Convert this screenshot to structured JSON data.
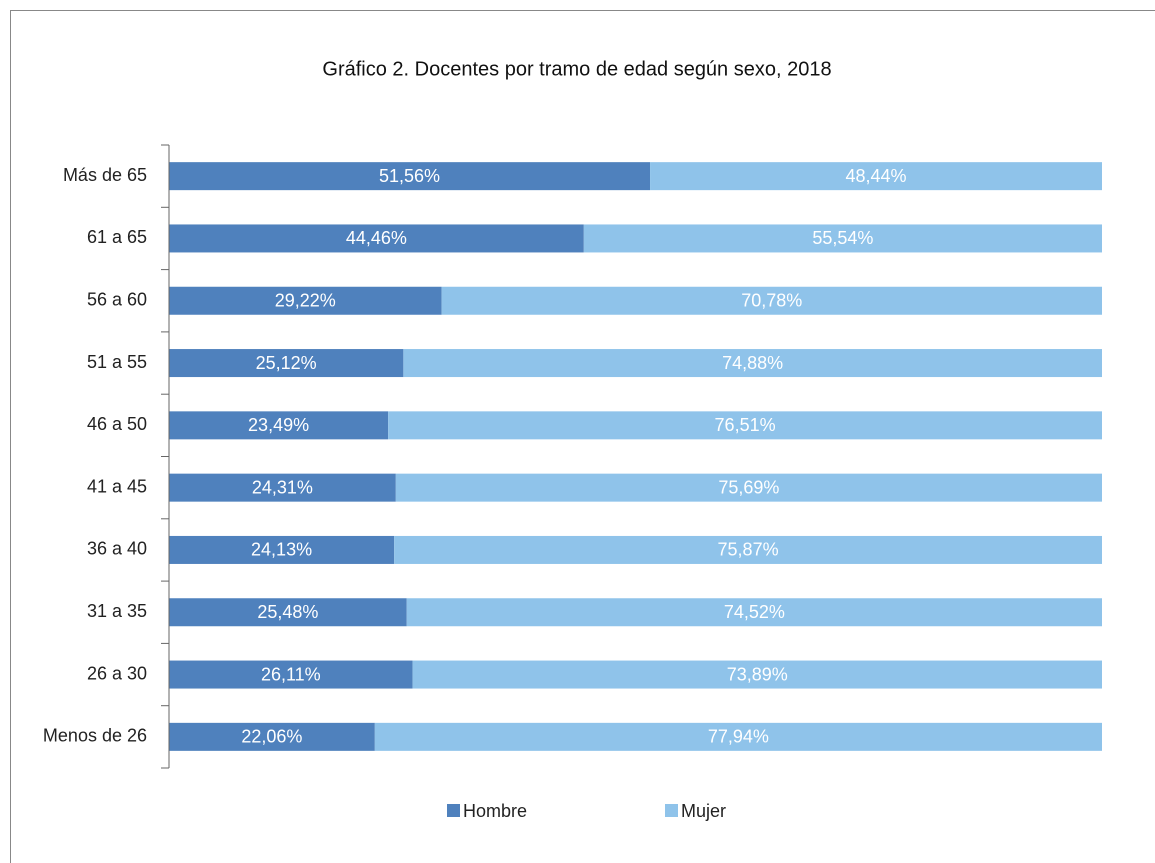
{
  "chart_data": {
    "type": "stacked-barh",
    "title": "Gráfico 2. Docentes por tramo de edad según sexo, 2018",
    "categories": [
      "Más de 65",
      "61 a 65",
      "56 a 60",
      "51 a 55",
      "46 a 50",
      "41 a 45",
      "36 a 40",
      "31 a 35",
      "26 a 30",
      "Menos de 26"
    ],
    "xlim": [
      0,
      100
    ],
    "series": [
      {
        "name": "Hombre",
        "color": "#4f81bd",
        "values": [
          51.56,
          44.46,
          29.22,
          25.12,
          23.49,
          24.31,
          24.13,
          25.48,
          26.11,
          22.06
        ],
        "value_labels": [
          "51,56%",
          "44,46%",
          "29,22%",
          "25,12%",
          "23,49%",
          "24,31%",
          "24,13%",
          "25,48%",
          "26,11%",
          "22,06%"
        ]
      },
      {
        "name": "Mujer",
        "color": "#8fc3ea",
        "values": [
          48.44,
          55.54,
          70.78,
          74.88,
          76.51,
          75.69,
          75.87,
          74.52,
          73.89,
          77.94
        ],
        "value_labels": [
          "48,44%",
          "55,54%",
          "70,78%",
          "74,88%",
          "76,51%",
          "75,69%",
          "75,87%",
          "74,52%",
          "73,89%",
          "77,94%"
        ]
      }
    ],
    "legend": "bottom"
  }
}
